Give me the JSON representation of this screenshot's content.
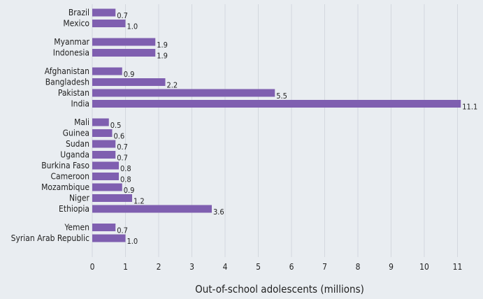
{
  "chart_data": {
    "type": "bar",
    "orientation": "horizontal",
    "xlabel": "Out-of-school adolescents (millions)",
    "xlim": [
      0,
      11
    ],
    "xticks": [
      0,
      1,
      2,
      3,
      4,
      5,
      6,
      7,
      8,
      9,
      10,
      11
    ],
    "grid": "vertical",
    "bar_color": "#7f5fb0",
    "background": "#e9edf1",
    "groups": [
      {
        "items": [
          {
            "label": "Brazil",
            "value": 0.7,
            "display": "0.7"
          },
          {
            "label": "Mexico",
            "value": 1.0,
            "display": "1.0"
          }
        ]
      },
      {
        "items": [
          {
            "label": "Myanmar",
            "value": 1.9,
            "display": "1.9"
          },
          {
            "label": "Indonesia",
            "value": 1.9,
            "display": "1.9"
          }
        ]
      },
      {
        "items": [
          {
            "label": "Afghanistan",
            "value": 0.9,
            "display": "0.9"
          },
          {
            "label": "Bangladesh",
            "value": 2.2,
            "display": "2.2"
          },
          {
            "label": "Pakistan",
            "value": 5.5,
            "display": "5.5"
          },
          {
            "label": "India",
            "value": 11.1,
            "display": "11.1"
          }
        ]
      },
      {
        "items": [
          {
            "label": "Mali",
            "value": 0.5,
            "display": "0.5"
          },
          {
            "label": "Guinea",
            "value": 0.6,
            "display": "0.6"
          },
          {
            "label": "Sudan",
            "value": 0.7,
            "display": "0.7"
          },
          {
            "label": "Uganda",
            "value": 0.7,
            "display": "0.7"
          },
          {
            "label": "Burkina Faso",
            "value": 0.8,
            "display": "0.8"
          },
          {
            "label": "Cameroon",
            "value": 0.8,
            "display": "0.8"
          },
          {
            "label": "Mozambique",
            "value": 0.9,
            "display": "0.9"
          },
          {
            "label": "Niger",
            "value": 1.2,
            "display": "1.2"
          },
          {
            "label": "Ethiopia",
            "value": 3.6,
            "display": "3.6"
          }
        ]
      },
      {
        "items": [
          {
            "label": "Yemen",
            "value": 0.7,
            "display": "0.7"
          },
          {
            "label": "Syrian Arab Republic",
            "value": 1.0,
            "display": "1.0"
          }
        ]
      }
    ]
  }
}
